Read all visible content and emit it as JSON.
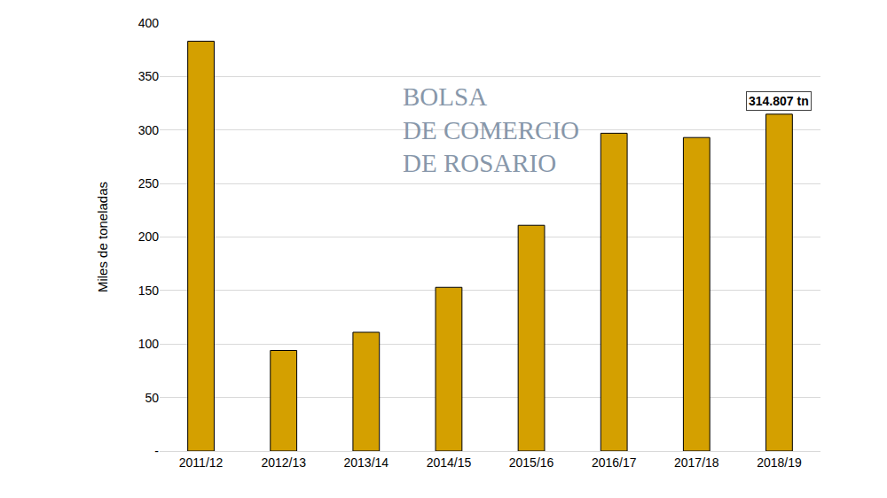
{
  "chart_data": {
    "type": "bar",
    "y_label": "Miles de toneladas",
    "categories": [
      "2011/12",
      "2012/13",
      "2013/14",
      "2014/15",
      "2015/16",
      "2016/17",
      "2017/18",
      "2018/19"
    ],
    "values": [
      383,
      94,
      111,
      153,
      211,
      297,
      293,
      314.807
    ],
    "color": "#d4a000",
    "ylim": [
      0,
      400
    ],
    "yticks": [
      {
        "value": 0,
        "label": "-"
      },
      50,
      100,
      150,
      200,
      250,
      300,
      350,
      400
    ],
    "grid": true,
    "annotations": [
      {
        "text": "314.807 tn"
      }
    ],
    "watermark": [
      "BOLSA",
      "DE COMERCIO",
      "DE ROSARIO"
    ]
  }
}
